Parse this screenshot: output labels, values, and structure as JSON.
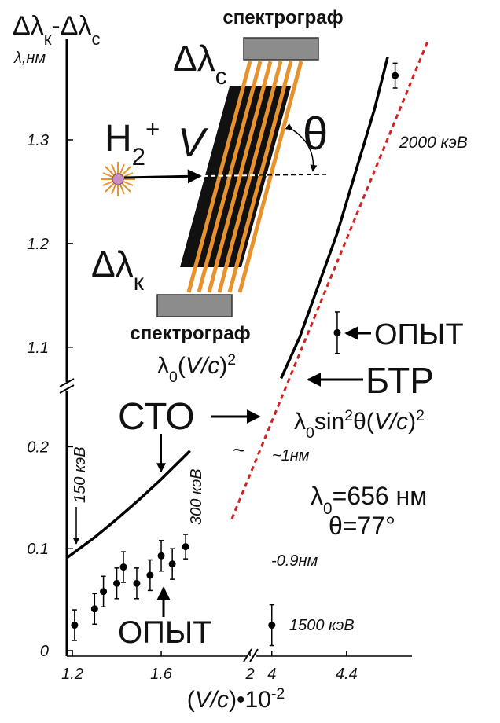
{
  "chart_data": {
    "type": "line",
    "title": [
      {
        "t": "Δλ"
      },
      {
        "sub": "к"
      },
      {
        "t": "-Δλ"
      },
      {
        "sub": "с"
      }
    ],
    "ylabel": "λ,нм",
    "xlabel": [
      {
        "t": "("
      },
      {
        "i": "V/c"
      },
      {
        "t": ")•10"
      },
      {
        "sup": "-2"
      }
    ],
    "xaxes": [
      {
        "xlim": [
          1.175,
          2.0
        ],
        "xticks": [
          1.2,
          1.6,
          2
        ]
      },
      {
        "xlim": [
          3.9,
          4.75
        ],
        "xticks": [
          4,
          4.4
        ]
      }
    ],
    "yaxes": [
      {
        "ylim": [
          0,
          0.255
        ],
        "yticks": [
          0,
          0.1,
          0.2
        ]
      },
      {
        "ylim": [
          1.065,
          1.397
        ],
        "yticks": [
          1.1,
          1.2,
          1.3
        ]
      }
    ],
    "series": [
      {
        "color": "#000000",
        "xaxis": 0,
        "yaxis": 0,
        "x": [
          1.175,
          1.3,
          1.4,
          1.5,
          1.6,
          1.73
        ],
        "values": [
          0.091,
          0.111,
          0.129,
          0.148,
          0.168,
          0.196
        ]
      },
      {
        "color": "#000000",
        "xaxis": 1,
        "yaxis": 1,
        "x": [
          4.05,
          4.15,
          4.25,
          4.35,
          4.45,
          4.55,
          4.62
        ],
        "values": [
          1.07,
          1.11,
          1.16,
          1.21,
          1.27,
          1.33,
          1.38
        ]
      }
    ],
    "points": [
      {
        "color": "#000000",
        "xaxis": 0,
        "yaxis": 0,
        "x": [
          1.21,
          1.3,
          1.34,
          1.4,
          1.43,
          1.49,
          1.55,
          1.6,
          1.65,
          1.71
        ],
        "values": [
          0.025,
          0.041,
          0.058,
          0.066,
          0.082,
          0.066,
          0.074,
          0.093,
          0.085,
          0.102
        ],
        "errors": [
          0.015,
          0.015,
          0.015,
          0.015,
          0.015,
          0.015,
          0.015,
          0.015,
          0.015,
          0.012
        ]
      },
      {
        "color": "#000000",
        "xaxis": 1,
        "yaxis": 0,
        "x": [
          4.0
        ],
        "values": [
          0.025
        ],
        "errors": [
          0.02
        ]
      },
      {
        "color": "#000000",
        "xaxis": 1,
        "yaxis": 1,
        "x": [
          4.35,
          4.66
        ],
        "values": [
          1.114,
          1.362
        ],
        "errors": [
          0.02,
          0.012
        ]
      }
    ],
    "annotations": [
      "спектрограф",
      [
        {
          "t": "Δλ"
        },
        {
          "sub": "с"
        }
      ],
      [
        {
          "t": "H"
        },
        {
          "sub": "2"
        },
        {
          "sup": "+"
        }
      ],
      "V",
      "θ",
      [
        {
          "t": "Δλ"
        },
        {
          "sub": "к"
        }
      ],
      "спектрограф",
      "2000 кэВ",
      "ОПЫТ",
      [
        {
          "t": "λ"
        },
        {
          "sub": "0"
        },
        {
          "t": "("
        },
        {
          "i": "V/c"
        },
        {
          "t": ")"
        },
        {
          "sup": "2"
        }
      ],
      "БТР",
      "СТО",
      [
        {
          "t": "λ"
        },
        {
          "sub": "0"
        },
        {
          "t": "sin"
        },
        {
          "sup": "2"
        },
        {
          "t": "θ("
        },
        {
          "i": "V/c"
        },
        {
          "t": ")"
        },
        {
          "sup": "2"
        }
      ],
      "150 кэВ",
      "300 кэВ",
      "~1нм",
      "~",
      [
        {
          "t": "λ"
        },
        {
          "sub": "0"
        },
        {
          "t": "=656 нм"
        }
      ],
      "θ=77°",
      "-0.9нм",
      "1500 кэВ",
      "ОПЫТ"
    ]
  }
}
